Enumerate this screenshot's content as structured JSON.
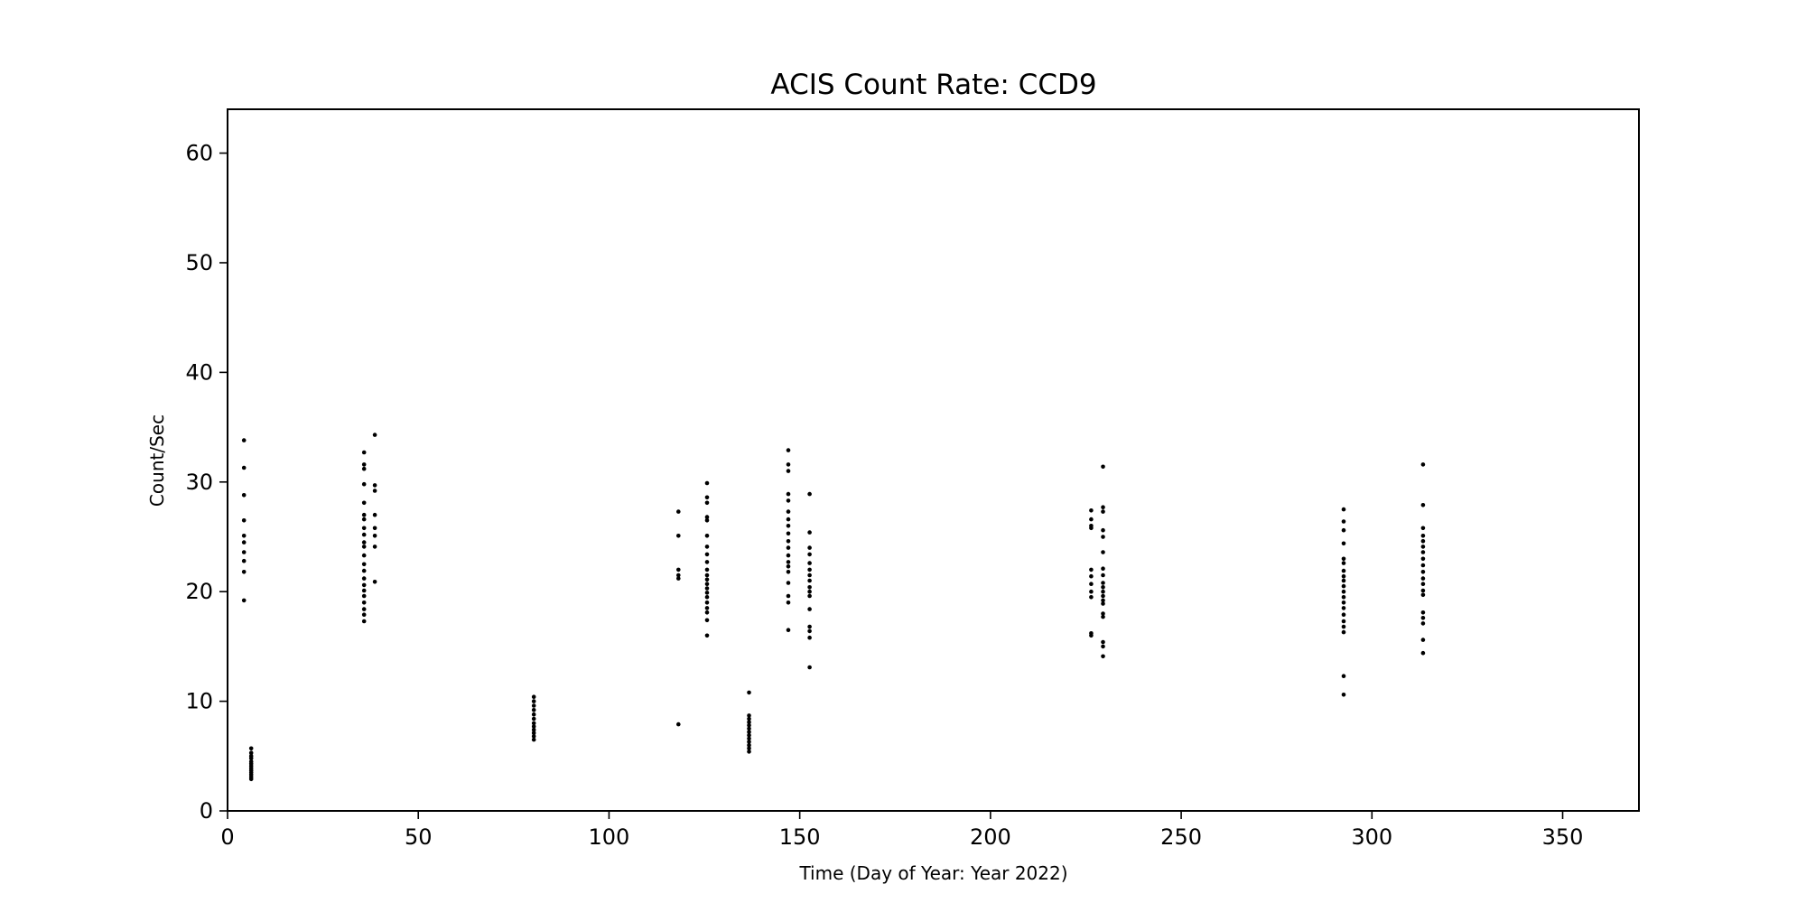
{
  "chart_data": {
    "type": "scatter",
    "title": "ACIS Count Rate: CCD9",
    "xlabel": "Time (Day of Year: Year 2022)",
    "ylabel": "Count/Sec",
    "xlim": [
      0,
      370
    ],
    "ylim": [
      0,
      64
    ],
    "xticks": [
      0,
      50,
      100,
      150,
      200,
      250,
      300,
      350
    ],
    "yticks": [
      0,
      10,
      20,
      30,
      40,
      50,
      60
    ],
    "grid": false,
    "legend": "none",
    "marker_color": "#000000",
    "series": [
      {
        "points": [
          [
            4.3,
            33.8
          ],
          [
            4.3,
            31.3
          ],
          [
            4.3,
            28.8
          ],
          [
            4.3,
            26.5
          ],
          [
            4.3,
            25.1
          ],
          [
            4.3,
            24.5
          ],
          [
            4.3,
            23.6
          ],
          [
            4.3,
            22.8
          ],
          [
            4.3,
            21.8
          ],
          [
            4.3,
            19.2
          ],
          [
            6.2,
            5.7
          ],
          [
            6.2,
            5.3
          ],
          [
            6.2,
            5.0
          ],
          [
            6.2,
            4.8
          ],
          [
            6.2,
            4.5
          ],
          [
            6.2,
            4.3
          ],
          [
            6.2,
            4.1
          ],
          [
            6.2,
            3.9
          ],
          [
            6.2,
            3.7
          ],
          [
            6.2,
            3.5
          ],
          [
            6.2,
            3.3
          ],
          [
            6.2,
            3.1
          ],
          [
            6.2,
            2.9
          ],
          [
            35.8,
            32.7
          ],
          [
            35.8,
            31.6
          ],
          [
            35.8,
            31.2
          ],
          [
            35.8,
            29.8
          ],
          [
            35.8,
            28.1
          ],
          [
            35.8,
            27.0
          ],
          [
            35.8,
            26.6
          ],
          [
            35.8,
            25.8
          ],
          [
            35.8,
            25.2
          ],
          [
            35.8,
            24.5
          ],
          [
            35.8,
            24.1
          ],
          [
            35.8,
            23.3
          ],
          [
            35.8,
            22.5
          ],
          [
            35.8,
            21.9
          ],
          [
            35.8,
            21.2
          ],
          [
            35.8,
            20.6
          ],
          [
            35.8,
            20.1
          ],
          [
            35.8,
            19.6
          ],
          [
            35.8,
            19.0
          ],
          [
            35.8,
            18.4
          ],
          [
            35.8,
            17.9
          ],
          [
            35.8,
            17.3
          ],
          [
            38.6,
            34.3
          ],
          [
            38.6,
            29.7
          ],
          [
            38.6,
            29.2
          ],
          [
            38.6,
            27.0
          ],
          [
            38.6,
            25.8
          ],
          [
            38.6,
            25.1
          ],
          [
            38.6,
            24.1
          ],
          [
            38.6,
            20.9
          ],
          [
            80.3,
            10.4
          ],
          [
            80.3,
            10.0
          ],
          [
            80.3,
            9.6
          ],
          [
            80.3,
            9.2
          ],
          [
            80.3,
            8.8
          ],
          [
            80.3,
            8.4
          ],
          [
            80.3,
            8.0
          ],
          [
            80.3,
            7.7
          ],
          [
            80.3,
            7.4
          ],
          [
            80.3,
            7.1
          ],
          [
            80.3,
            6.8
          ],
          [
            80.3,
            6.5
          ],
          [
            118.2,
            27.3
          ],
          [
            118.2,
            25.1
          ],
          [
            118.2,
            22.0
          ],
          [
            118.2,
            21.5
          ],
          [
            118.2,
            21.2
          ],
          [
            118.2,
            7.9
          ],
          [
            125.7,
            29.9
          ],
          [
            125.7,
            28.6
          ],
          [
            125.7,
            28.1
          ],
          [
            125.7,
            26.8
          ],
          [
            125.7,
            26.5
          ],
          [
            125.7,
            25.1
          ],
          [
            125.7,
            24.1
          ],
          [
            125.7,
            23.4
          ],
          [
            125.7,
            22.7
          ],
          [
            125.7,
            22.0
          ],
          [
            125.7,
            21.5
          ],
          [
            125.7,
            21.1
          ],
          [
            125.7,
            20.7
          ],
          [
            125.7,
            20.3
          ],
          [
            125.7,
            19.9
          ],
          [
            125.7,
            19.5
          ],
          [
            125.7,
            19.0
          ],
          [
            125.7,
            18.5
          ],
          [
            125.7,
            18.1
          ],
          [
            125.7,
            17.4
          ],
          [
            125.7,
            16.0
          ],
          [
            136.7,
            10.8
          ],
          [
            136.7,
            8.7
          ],
          [
            136.7,
            8.4
          ],
          [
            136.7,
            8.1
          ],
          [
            136.7,
            7.8
          ],
          [
            136.7,
            7.5
          ],
          [
            136.7,
            7.2
          ],
          [
            136.7,
            6.9
          ],
          [
            136.7,
            6.6
          ],
          [
            136.7,
            6.3
          ],
          [
            136.7,
            6.0
          ],
          [
            136.7,
            5.7
          ],
          [
            136.7,
            5.4
          ],
          [
            147.0,
            32.9
          ],
          [
            147.0,
            31.6
          ],
          [
            147.0,
            31.0
          ],
          [
            147.0,
            28.9
          ],
          [
            147.0,
            28.3
          ],
          [
            147.0,
            27.3
          ],
          [
            147.0,
            26.6
          ],
          [
            147.0,
            26.0
          ],
          [
            147.0,
            25.3
          ],
          [
            147.0,
            24.6
          ],
          [
            147.0,
            24.0
          ],
          [
            147.0,
            23.3
          ],
          [
            147.0,
            22.7
          ],
          [
            147.0,
            22.3
          ],
          [
            147.0,
            21.8
          ],
          [
            147.0,
            20.8
          ],
          [
            147.0,
            19.6
          ],
          [
            147.0,
            19.0
          ],
          [
            147.0,
            16.5
          ],
          [
            152.6,
            28.9
          ],
          [
            152.6,
            25.4
          ],
          [
            152.6,
            24.0
          ],
          [
            152.6,
            23.4
          ],
          [
            152.6,
            22.6
          ],
          [
            152.6,
            22.0
          ],
          [
            152.6,
            21.5
          ],
          [
            152.6,
            21.0
          ],
          [
            152.6,
            20.4
          ],
          [
            152.6,
            20.0
          ],
          [
            152.6,
            19.6
          ],
          [
            152.6,
            18.4
          ],
          [
            152.6,
            16.8
          ],
          [
            152.6,
            16.4
          ],
          [
            152.6,
            15.8
          ],
          [
            152.6,
            13.1
          ],
          [
            226.4,
            27.4
          ],
          [
            226.4,
            26.6
          ],
          [
            226.4,
            26.0
          ],
          [
            226.4,
            25.8
          ],
          [
            226.4,
            22.0
          ],
          [
            226.4,
            21.4
          ],
          [
            226.4,
            20.7
          ],
          [
            226.4,
            20.0
          ],
          [
            226.4,
            19.5
          ],
          [
            226.4,
            16.2
          ],
          [
            226.4,
            16.0
          ],
          [
            229.5,
            31.4
          ],
          [
            229.5,
            27.7
          ],
          [
            229.5,
            27.3
          ],
          [
            229.5,
            25.6
          ],
          [
            229.5,
            25.0
          ],
          [
            229.5,
            23.6
          ],
          [
            229.5,
            22.1
          ],
          [
            229.5,
            21.5
          ],
          [
            229.5,
            20.8
          ],
          [
            229.5,
            20.4
          ],
          [
            229.5,
            20.0
          ],
          [
            229.5,
            19.6
          ],
          [
            229.5,
            19.2
          ],
          [
            229.5,
            18.9
          ],
          [
            229.5,
            18.0
          ],
          [
            229.5,
            17.7
          ],
          [
            229.5,
            15.4
          ],
          [
            229.5,
            15.0
          ],
          [
            229.5,
            14.1
          ],
          [
            292.6,
            27.5
          ],
          [
            292.6,
            26.4
          ],
          [
            292.6,
            25.6
          ],
          [
            292.6,
            24.4
          ],
          [
            292.6,
            23.0
          ],
          [
            292.6,
            22.6
          ],
          [
            292.6,
            21.9
          ],
          [
            292.6,
            21.4
          ],
          [
            292.6,
            21.0
          ],
          [
            292.6,
            20.5
          ],
          [
            292.6,
            20.0
          ],
          [
            292.6,
            19.5
          ],
          [
            292.6,
            19.0
          ],
          [
            292.6,
            18.5
          ],
          [
            292.6,
            17.9
          ],
          [
            292.6,
            17.3
          ],
          [
            292.6,
            16.8
          ],
          [
            292.6,
            16.3
          ],
          [
            292.6,
            12.3
          ],
          [
            292.6,
            10.6
          ],
          [
            313.4,
            31.6
          ],
          [
            313.4,
            27.9
          ],
          [
            313.4,
            25.8
          ],
          [
            313.4,
            25.1
          ],
          [
            313.4,
            24.6
          ],
          [
            313.4,
            24.1
          ],
          [
            313.4,
            23.6
          ],
          [
            313.4,
            23.0
          ],
          [
            313.4,
            22.4
          ],
          [
            313.4,
            21.8
          ],
          [
            313.4,
            21.2
          ],
          [
            313.4,
            20.7
          ],
          [
            313.4,
            20.1
          ],
          [
            313.4,
            19.7
          ],
          [
            313.4,
            18.1
          ],
          [
            313.4,
            17.6
          ],
          [
            313.4,
            17.1
          ],
          [
            313.4,
            15.6
          ],
          [
            313.4,
            14.4
          ]
        ]
      }
    ]
  }
}
